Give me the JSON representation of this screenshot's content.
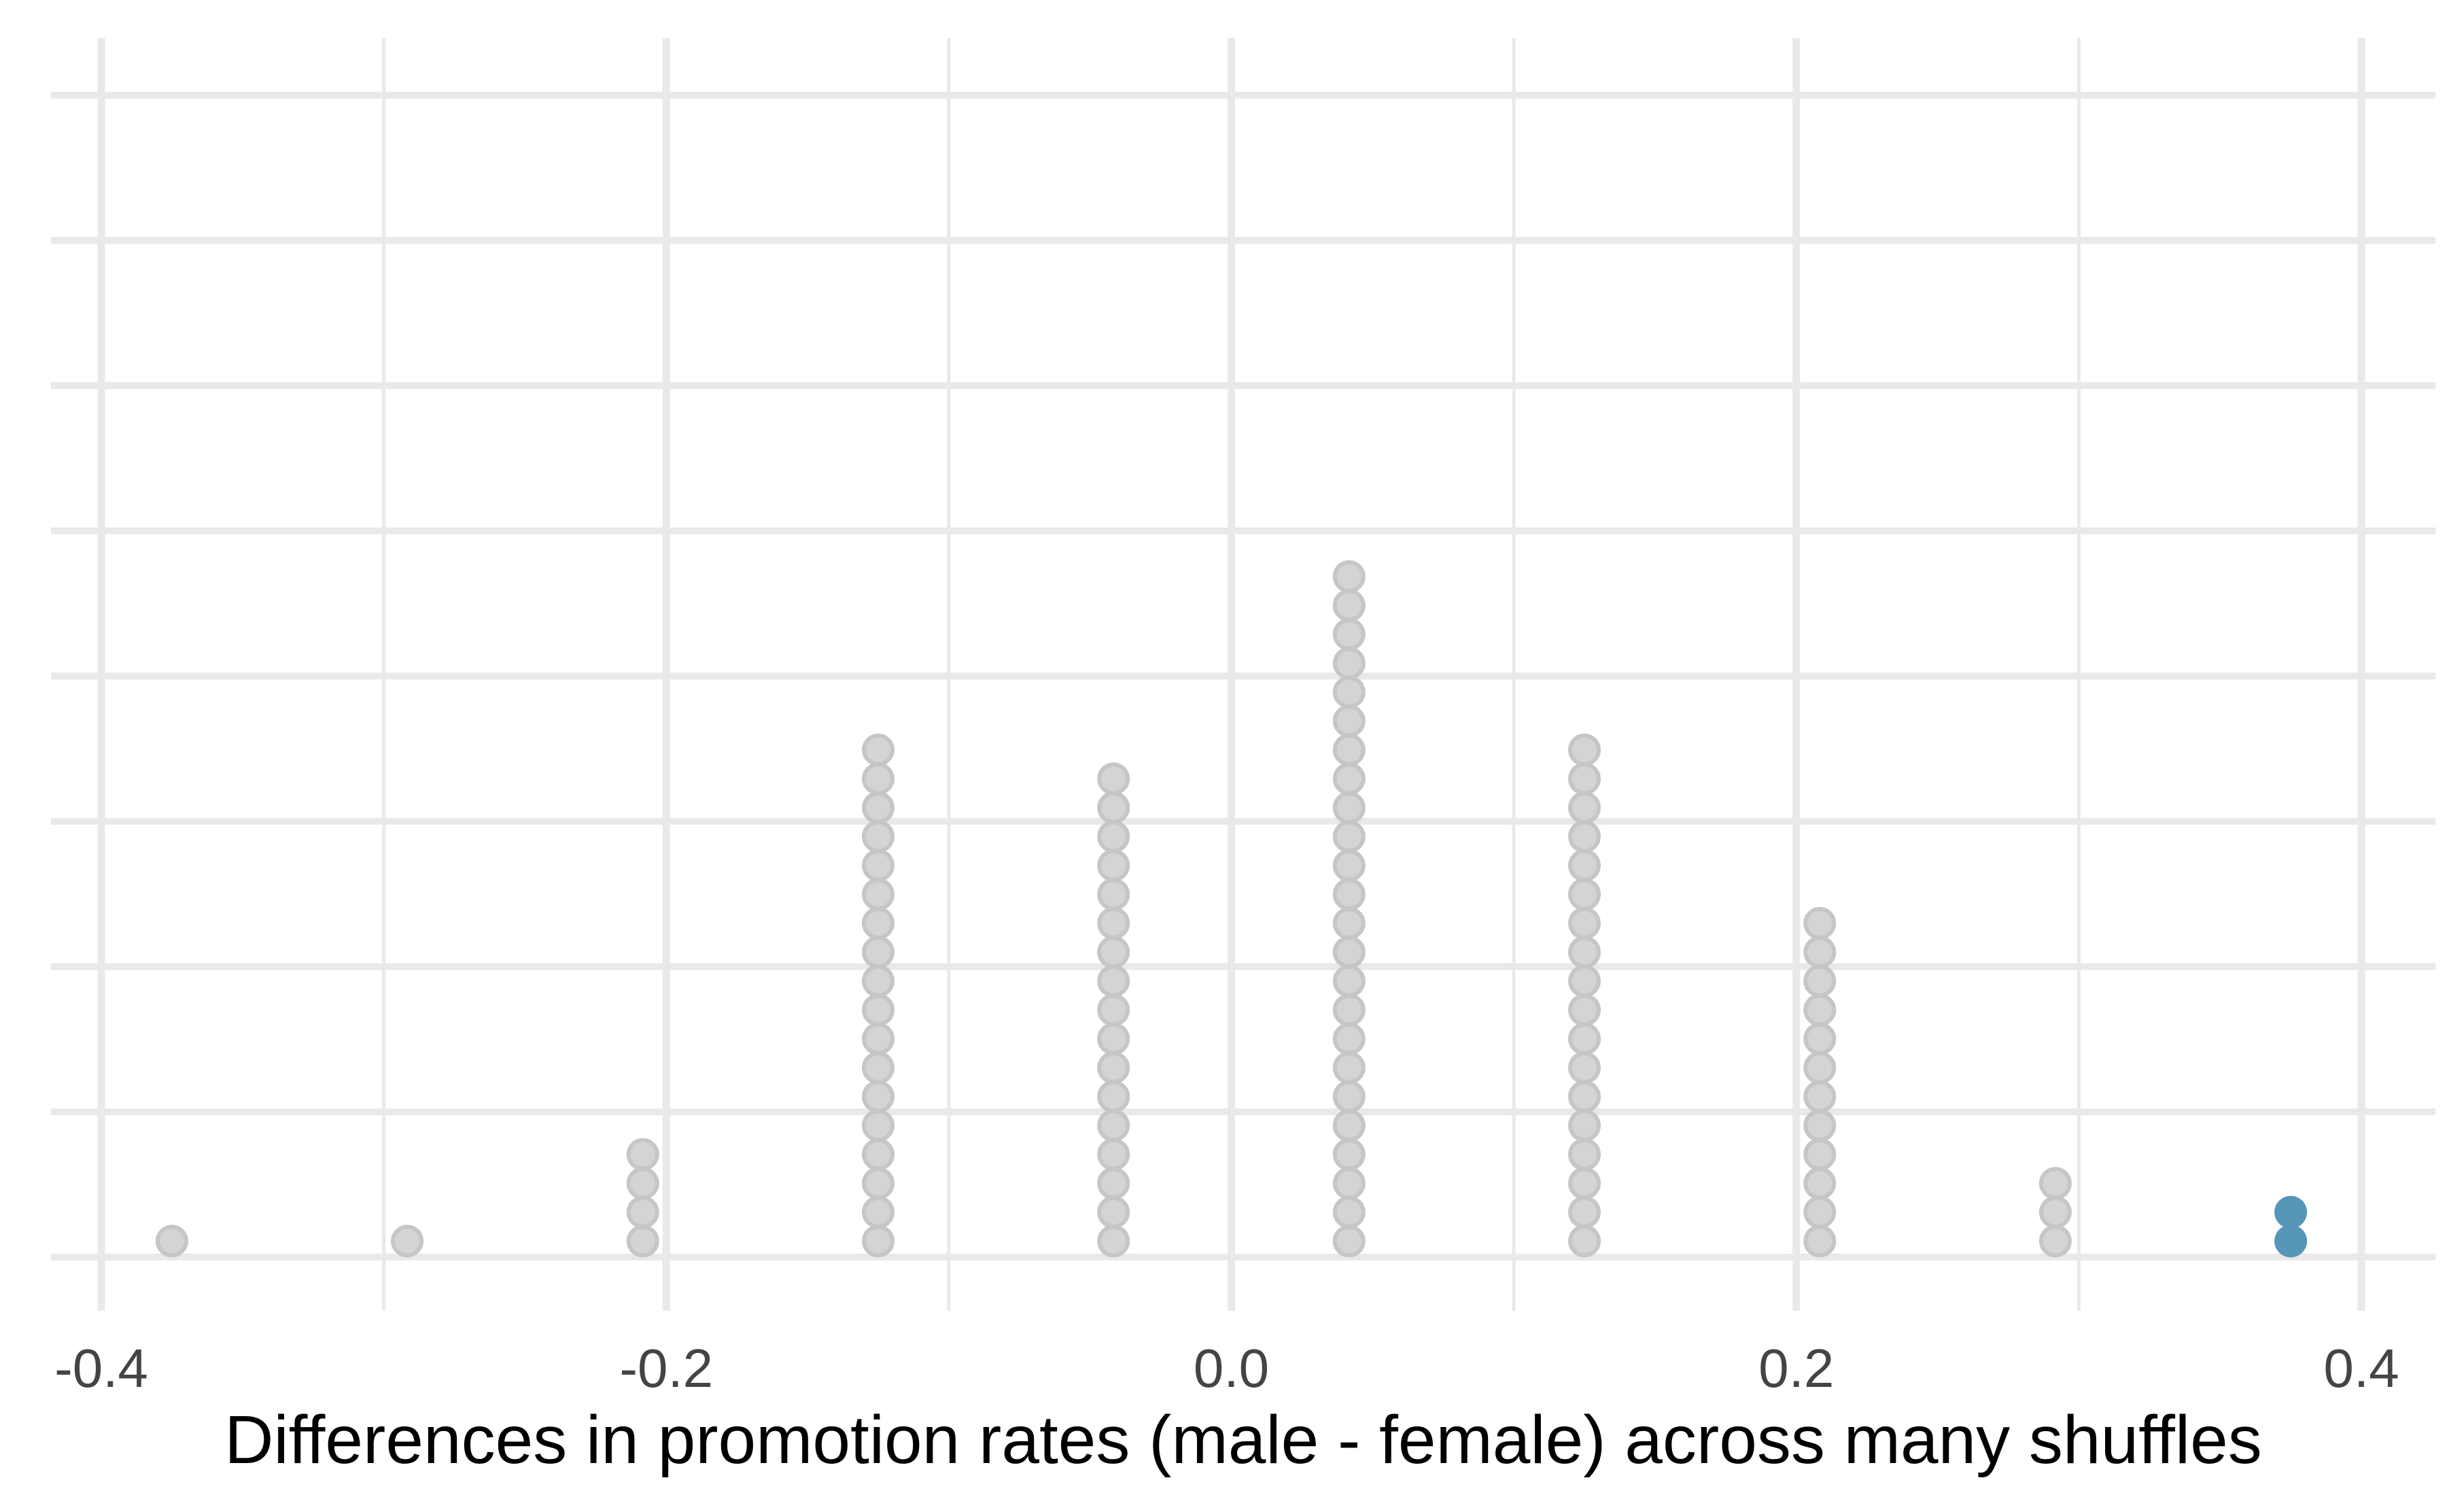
{
  "chart_data": {
    "type": "dotplot",
    "title": "",
    "xlabel": "Differences in promotion rates (male - female) across many shuffles",
    "ylabel": "",
    "legend": "none",
    "grid": "x major+minor, y major only, no y-axis labels",
    "xlim": [
      -0.418,
      0.426
    ],
    "x_major_ticks": [
      -0.4,
      -0.2,
      0.0,
      0.2,
      0.4
    ],
    "x_tick_labels": [
      "-0.4",
      "-0.2",
      "0.0",
      "0.2",
      "0.4"
    ],
    "x_minor_ticks": [
      -0.3,
      -0.1,
      0.1,
      0.3
    ],
    "y_gridline_count": 9,
    "total_points": 100,
    "stacks": [
      {
        "x": -0.375,
        "count": 1,
        "group": "shuffle"
      },
      {
        "x": -0.2917,
        "count": 1,
        "group": "shuffle"
      },
      {
        "x": -0.2083,
        "count": 4,
        "group": "shuffle"
      },
      {
        "x": -0.125,
        "count": 18,
        "group": "shuffle"
      },
      {
        "x": -0.0417,
        "count": 17,
        "group": "shuffle"
      },
      {
        "x": 0.0417,
        "count": 24,
        "group": "shuffle"
      },
      {
        "x": 0.125,
        "count": 18,
        "group": "shuffle"
      },
      {
        "x": 0.2083,
        "count": 12,
        "group": "shuffle"
      },
      {
        "x": 0.2917,
        "count": 3,
        "group": "shuffle"
      },
      {
        "x": 0.375,
        "count": 2,
        "group": "highlight"
      }
    ],
    "colors": {
      "shuffle_fill": "#d4d4d4",
      "shuffle_stroke": "#c6c6c6",
      "highlight_fill": "#5696b8",
      "grid": "#e9e9e9",
      "tick_text": "#444444",
      "title_text": "#000000",
      "background": "#ffffff"
    }
  }
}
